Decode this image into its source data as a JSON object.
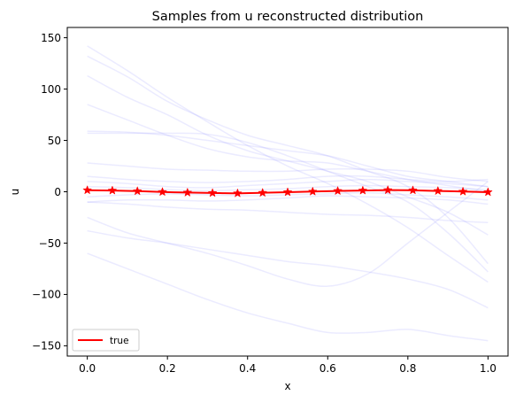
{
  "chart_data": {
    "type": "line",
    "title": "Samples from u reconstructed distribution",
    "xlabel": "x",
    "ylabel": "u",
    "xlim": [
      -0.05,
      1.05
    ],
    "ylim": [
      -160,
      160
    ],
    "xticks": [
      0.0,
      0.2,
      0.4,
      0.6,
      0.8,
      1.0
    ],
    "xtick_labels": [
      "0.0",
      "0.2",
      "0.4",
      "0.6",
      "0.8",
      "1.0"
    ],
    "yticks": [
      -150,
      -100,
      -50,
      0,
      50,
      100,
      150
    ],
    "ytick_labels": [
      "−150",
      "−100",
      "−50",
      "0",
      "50",
      "100",
      "150"
    ],
    "grid": false,
    "legend": {
      "position": "lower-left",
      "entries": [
        {
          "label": "true",
          "color": "#ff0000"
        }
      ]
    },
    "sample_color": "#8080ff",
    "sample_opacity": 0.16,
    "true_color": "#ff0000",
    "samples": {
      "x": [
        0.0,
        0.1,
        0.2,
        0.3,
        0.4,
        0.5,
        0.6,
        0.7,
        0.8,
        0.9,
        1.0
      ],
      "curves": [
        [
          142,
          118,
          92,
          68,
          45,
          25,
          8,
          -12,
          -35,
          -62,
          -88
        ],
        [
          132,
          112,
          88,
          70,
          55,
          45,
          35,
          20,
          5,
          -25,
          -70
        ],
        [
          113,
          92,
          75,
          55,
          40,
          30,
          20,
          10,
          -5,
          -20,
          -42
        ],
        [
          85,
          70,
          55,
          42,
          34,
          30,
          28,
          20,
          12,
          6,
          0
        ],
        [
          59,
          58,
          55,
          50,
          45,
          40,
          35,
          25,
          15,
          10,
          5
        ],
        [
          57,
          57,
          57,
          56,
          48,
          35,
          20,
          5,
          -10,
          -40,
          -78
        ],
        [
          28,
          25,
          22,
          21,
          20,
          20,
          22,
          22,
          20,
          14,
          10
        ],
        [
          15,
          12,
          10,
          9,
          10,
          12,
          15,
          15,
          12,
          10,
          12
        ],
        [
          10,
          8,
          5,
          4,
          6,
          8,
          10,
          12,
          10,
          8,
          5
        ],
        [
          5,
          4,
          2,
          1,
          2,
          3,
          5,
          6,
          5,
          4,
          2
        ],
        [
          -5,
          -3,
          -2,
          -3,
          -4,
          -3,
          -2,
          -1,
          -3,
          -5,
          -8
        ],
        [
          -10,
          -8,
          -8,
          -9,
          -8,
          -6,
          -4,
          -5,
          -6,
          -8,
          -12
        ],
        [
          -25,
          -40,
          -50,
          -60,
          -72,
          -85,
          -92,
          -80,
          -50,
          -20,
          10
        ],
        [
          -38,
          -45,
          -50,
          -56,
          -62,
          -68,
          -72,
          -78,
          -85,
          -95,
          -113
        ],
        [
          -60,
          -75,
          -90,
          -105,
          -118,
          -128,
          -137,
          -137,
          -134,
          -140,
          -145
        ],
        [
          -10,
          -12,
          -15,
          -17,
          -18,
          -20,
          -22,
          -23,
          -25,
          -28,
          -30
        ]
      ]
    },
    "series": [
      {
        "name": "true",
        "x": [
          0.0,
          0.0625,
          0.125,
          0.1875,
          0.25,
          0.3125,
          0.375,
          0.4375,
          0.5,
          0.5625,
          0.625,
          0.6875,
          0.75,
          0.8125,
          0.875,
          0.9375,
          1.0
        ],
        "values": [
          1.5,
          1.2,
          0.6,
          -0.2,
          -0.8,
          -1.2,
          -1.5,
          -1.0,
          -0.4,
          0.2,
          0.8,
          1.2,
          1.6,
          1.4,
          0.8,
          0.2,
          -0.4
        ],
        "marker": "star",
        "color": "#ff0000"
      }
    ]
  }
}
